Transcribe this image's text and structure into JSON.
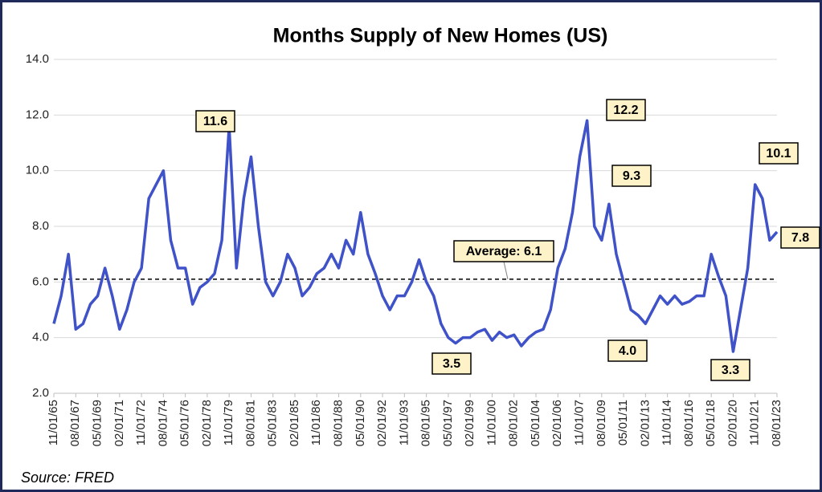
{
  "chart_data": {
    "type": "line",
    "title": "Months Supply of New Homes (US)",
    "source": "Source: FRED",
    "categories": [
      "11/01/65",
      null,
      null,
      "08/01/67",
      null,
      null,
      "05/01/69",
      null,
      null,
      "02/01/71",
      null,
      null,
      "11/01/72",
      null,
      null,
      "08/01/74",
      null,
      null,
      "05/01/76",
      null,
      null,
      "02/01/78",
      null,
      null,
      "11/01/79",
      null,
      null,
      "08/01/81",
      null,
      null,
      "05/01/83",
      null,
      null,
      "02/01/85",
      null,
      null,
      "11/01/86",
      null,
      null,
      "08/01/88",
      null,
      null,
      "05/01/90",
      null,
      null,
      "02/01/92",
      null,
      null,
      "11/01/93",
      null,
      null,
      "08/01/95",
      null,
      null,
      "05/01/97",
      null,
      null,
      "02/01/99",
      null,
      null,
      "11/01/00",
      null,
      null,
      "08/01/02",
      null,
      null,
      "05/01/04",
      null,
      null,
      "02/01/06",
      null,
      null,
      "11/01/07",
      null,
      null,
      "08/01/09",
      null,
      null,
      "05/01/11",
      null,
      null,
      "02/01/13",
      null,
      null,
      "11/01/14",
      null,
      null,
      "08/01/16",
      null,
      null,
      "05/01/18",
      null,
      null,
      "02/01/20",
      null,
      null,
      "11/01/21",
      null,
      null,
      "08/01/23"
    ],
    "series": [
      {
        "name": "Months Supply",
        "color": "#4052c8",
        "values": [
          4.5,
          5.5,
          7.0,
          4.3,
          4.5,
          5.2,
          5.5,
          6.5,
          5.5,
          4.3,
          5.0,
          6.0,
          6.5,
          9.0,
          9.5,
          10.0,
          7.5,
          6.5,
          6.5,
          5.2,
          5.8,
          6.0,
          6.3,
          7.5,
          11.6,
          6.5,
          9.0,
          10.5,
          8.0,
          6.0,
          5.5,
          6.0,
          7.0,
          6.5,
          5.5,
          5.8,
          6.3,
          6.5,
          7.0,
          6.5,
          7.5,
          7.0,
          8.5,
          7.0,
          6.3,
          5.5,
          5.0,
          5.5,
          5.5,
          6.0,
          6.8,
          6.0,
          5.5,
          4.5,
          4.0,
          3.8,
          4.0,
          4.0,
          4.2,
          4.3,
          3.9,
          4.2,
          4.0,
          4.1,
          3.7,
          4.0,
          4.2,
          4.3,
          5.0,
          6.5,
          7.2,
          8.5,
          10.5,
          11.8,
          8.0,
          7.5,
          8.8,
          7.0,
          6.0,
          5.0,
          4.8,
          4.5,
          5.0,
          5.5,
          5.2,
          5.5,
          5.2,
          5.3,
          5.5,
          5.5,
          7.0,
          6.2,
          5.5,
          3.5,
          5.0,
          6.5,
          9.5,
          9.0,
          7.5,
          7.8
        ]
      }
    ],
    "average": 6.1,
    "average_label": "Average: 6.1",
    "annotations": [
      "11.6",
      "12.2",
      "9.3",
      "10.1",
      "7.8",
      "3.5",
      "4.0",
      "3.3"
    ],
    "ylim": [
      2,
      14
    ],
    "yticks": [
      {
        "value": 2,
        "label": "2.0"
      },
      {
        "value": 4,
        "label": "4.0"
      },
      {
        "value": 6,
        "label": "6.0"
      },
      {
        "value": 8,
        "label": "8.0"
      },
      {
        "value": 10,
        "label": "10.0"
      },
      {
        "value": 12,
        "label": "12.0"
      },
      {
        "value": 14,
        "label": "14.0"
      }
    ],
    "grid": true
  }
}
